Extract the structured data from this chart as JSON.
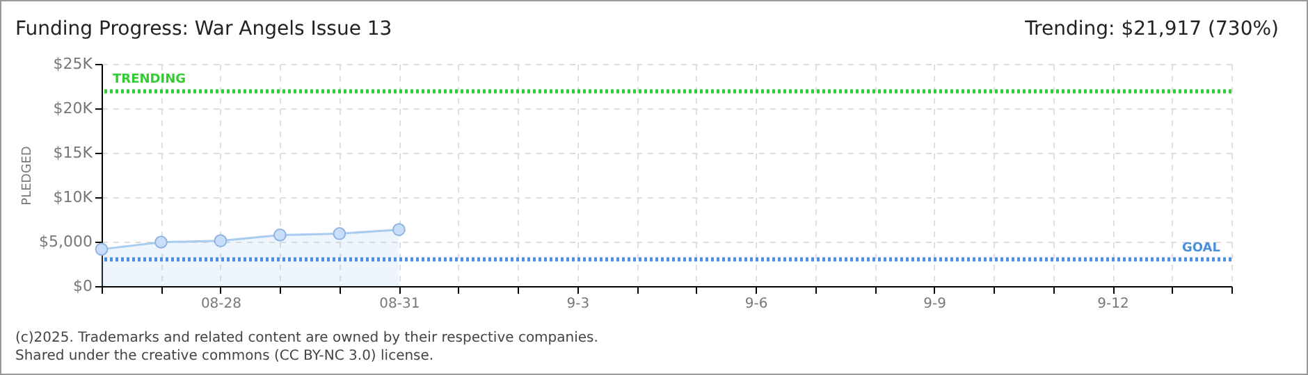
{
  "chart_data": {
    "type": "area",
    "title": "Funding Progress: War Angels Issue 13",
    "ylabel": "PLEDGED",
    "x": [
      "--08-26",
      "--08-27",
      "--08-28",
      "--08-29",
      "--08-30",
      "--08-31"
    ],
    "series": [
      {
        "color": "#a9cbef",
        "values": [
          4150,
          4950,
          5100,
          5750,
          5900,
          6350
        ]
      }
    ],
    "marker": "circle",
    "line_style": "solid",
    "grid": true,
    "xlim": [
      "--08-26",
      "--09-14"
    ],
    "xticks": [
      {
        "value": "--08-26",
        "label": null
      },
      {
        "value": "--08-27",
        "label": null
      },
      {
        "value": "--08-28",
        "label": "08-28"
      },
      {
        "value": "--08-29",
        "label": null
      },
      {
        "value": "--08-30",
        "label": null
      },
      {
        "value": "--08-31",
        "label": "08-31"
      },
      {
        "value": "--09-01",
        "label": null
      },
      {
        "value": "--09-02",
        "label": null
      },
      {
        "value": "--09-03",
        "label": "9-3"
      },
      {
        "value": "--09-04",
        "label": null
      },
      {
        "value": "--09-05",
        "label": null
      },
      {
        "value": "--09-06",
        "label": "9-6"
      },
      {
        "value": "--09-07",
        "label": null
      },
      {
        "value": "--09-08",
        "label": null
      },
      {
        "value": "--09-09",
        "label": "9-9"
      },
      {
        "value": "--09-10",
        "label": null
      },
      {
        "value": "--09-11",
        "label": null
      },
      {
        "value": "--09-12",
        "label": "9-12"
      },
      {
        "value": "--09-13",
        "label": null
      },
      {
        "value": "--09-14",
        "label": null
      }
    ],
    "ylim": [
      0,
      25000
    ],
    "yticks": [
      {
        "value": 0,
        "label": "$0"
      },
      {
        "value": 5000,
        "label": "$5,000"
      },
      {
        "value": 10000,
        "label": "$10K"
      },
      {
        "value": 15000,
        "label": "$15K"
      },
      {
        "value": 20000,
        "label": "$20K"
      },
      {
        "value": 25000,
        "label": "$25K"
      }
    ],
    "ref_lines": [
      {
        "axis": "y",
        "value": 21917,
        "label": "TRENDING",
        "color": "#33cc33",
        "line_style": "dotted"
      },
      {
        "axis": "y",
        "value": 3000,
        "label": "GOAL",
        "color": "#4a8fdc",
        "line_style": "dotted"
      }
    ],
    "annotations": [
      "Trending: $21,917 (730%)",
      "(c)2025. Trademarks and related content are owned by their respective companies.",
      "Shared under the creative commons (CC BY-NC 3.0) license."
    ]
  }
}
